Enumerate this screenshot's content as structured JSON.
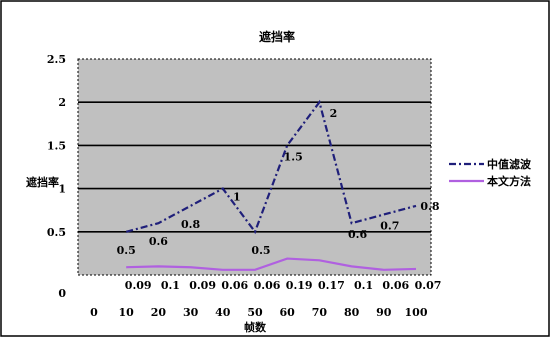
{
  "chart_data": {
    "type": "line",
    "title": "遮挡率",
    "xlabel": "帧数",
    "ylabel": "遮挡率",
    "x": [
      10,
      20,
      30,
      40,
      50,
      60,
      70,
      80,
      90,
      100
    ],
    "x_tick_labels": [
      "0",
      "10",
      "20",
      "30",
      "40",
      "50",
      "60",
      "70",
      "80",
      "90",
      "100"
    ],
    "y_tick_labels": [
      "0",
      "0.5",
      "1",
      "1.5",
      "2",
      "2.5"
    ],
    "ylim": [
      0,
      2.5
    ],
    "grid": "horizontal",
    "legend_position": "right",
    "series": [
      {
        "name": "中值滤波",
        "color": "#1f1f7a",
        "style": "dash-dot",
        "values": [
          0.5,
          0.6,
          0.8,
          1,
          0.5,
          1.5,
          2,
          0.6,
          0.7,
          0.8
        ],
        "labels": [
          "0.5",
          "0.6",
          "0.8",
          "1",
          "0.5",
          "1.5",
          "2",
          "0.6",
          "0.7",
          "0.8"
        ]
      },
      {
        "name": "本文方法",
        "color": "#b060e0",
        "style": "solid",
        "values": [
          0.09,
          0.1,
          0.09,
          0.06,
          0.06,
          0.19,
          0.17,
          0.1,
          0.06,
          0.07
        ],
        "labels": [
          "0.09",
          "0.1",
          "0.09",
          "0.06",
          "0.06",
          "0.19",
          "0.17",
          "0.1",
          "0.06",
          "0.07"
        ]
      }
    ],
    "colors": {
      "plot_background": "#c0c0c0",
      "grid_line": "#000000",
      "frame": "#000000"
    }
  }
}
